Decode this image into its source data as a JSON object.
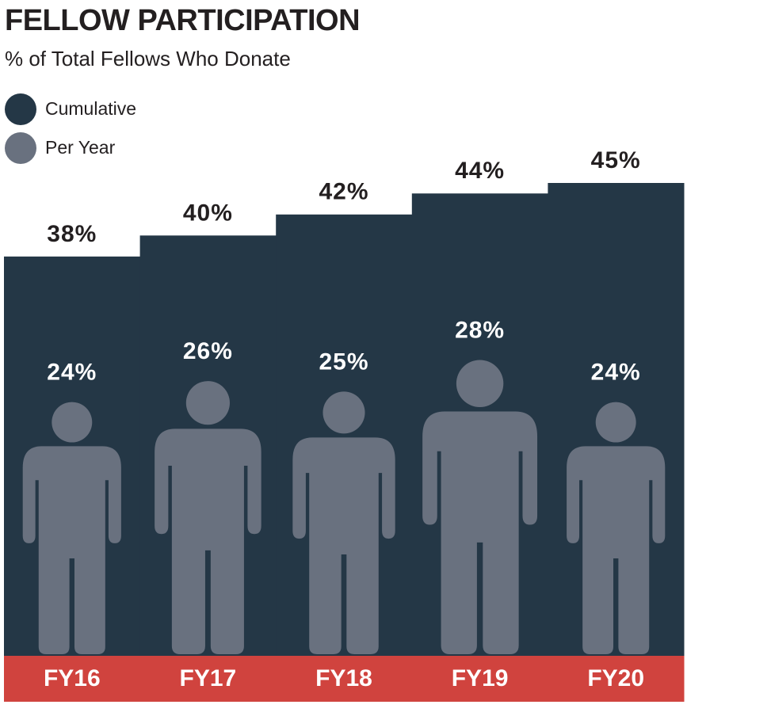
{
  "chart_data": {
    "type": "bar",
    "title": "FELLOW PARTICIPATION",
    "subtitle": "% of Total Fellows Who Donate",
    "categories": [
      "FY16",
      "FY17",
      "FY18",
      "FY19",
      "FY20"
    ],
    "series": [
      {
        "name": "Cumulative",
        "color": "#243746",
        "values": [
          38,
          40,
          42,
          44,
          45
        ],
        "value_labels": [
          "38%",
          "40%",
          "42%",
          "44%",
          "45%"
        ]
      },
      {
        "name": "Per Year",
        "color": "#69717f",
        "values": [
          24,
          26,
          25,
          28,
          24
        ],
        "value_labels": [
          "24%",
          "26%",
          "25%",
          "28%",
          "24%"
        ]
      }
    ],
    "category_band_color": "#d0433e",
    "ylim": [
      0,
      45
    ]
  }
}
